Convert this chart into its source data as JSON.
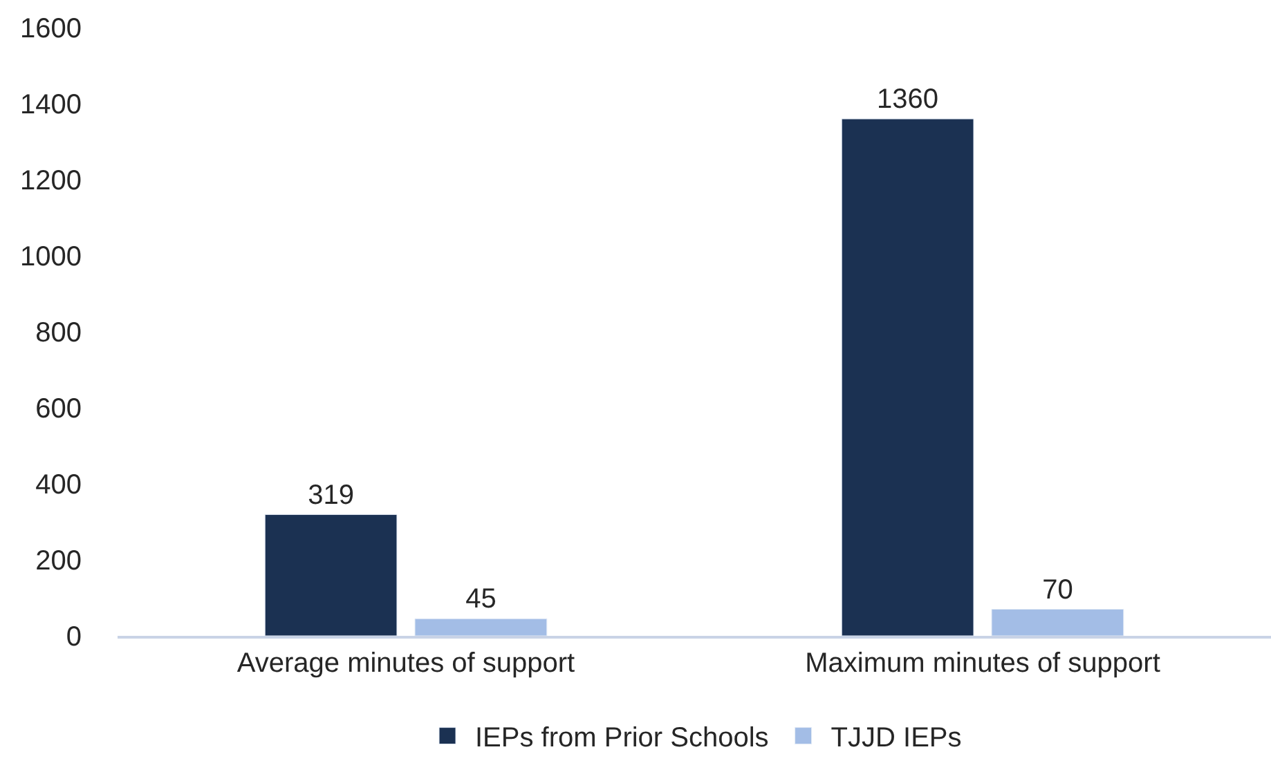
{
  "chart_data": {
    "type": "bar",
    "categories": [
      "Average minutes of support",
      "Maximum minutes of support"
    ],
    "series": [
      {
        "name": "IEPs from Prior Schools",
        "color": "#1b3152",
        "values": [
          319,
          1360
        ]
      },
      {
        "name": "TJJD IEPs",
        "color": "#a3bde6",
        "values": [
          45,
          70
        ]
      }
    ],
    "ylim": [
      0,
      1600
    ],
    "yticks": [
      0,
      200,
      400,
      600,
      800,
      1000,
      1200,
      1400,
      1600
    ],
    "legend": "bottom",
    "data_labels": true
  }
}
